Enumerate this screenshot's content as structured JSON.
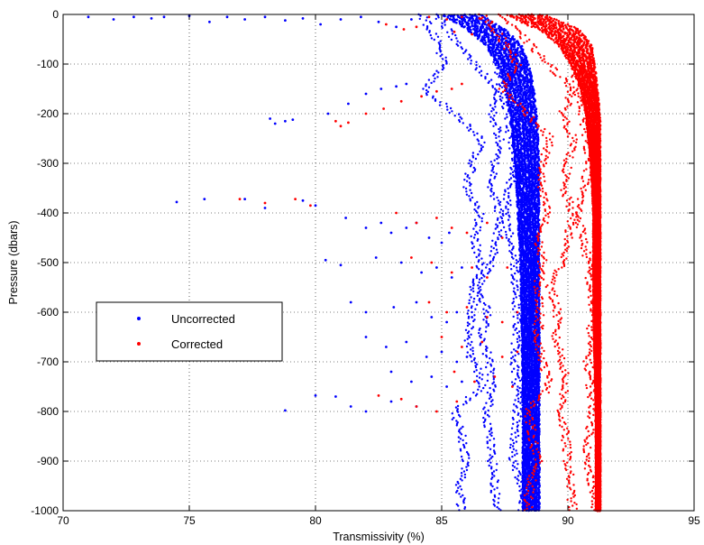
{
  "chart_data": {
    "type": "scatter",
    "xlabel": "Transmissivity (%)",
    "ylabel": "Pressure (dbars)",
    "xlim": [
      70,
      95
    ],
    "ylim": [
      -1000,
      0
    ],
    "xticks": [
      70,
      75,
      80,
      85,
      90,
      95
    ],
    "yticks": [
      0,
      -100,
      -200,
      -300,
      -400,
      -500,
      -600,
      -700,
      -800,
      -900,
      -1000
    ],
    "xtick_labels": [
      "70",
      "75",
      "80",
      "85",
      "90",
      "95"
    ],
    "ytick_labels": [
      "0",
      "-100",
      "-200",
      "-300",
      "-400",
      "-500",
      "-600",
      "-700",
      "-800",
      "-900",
      "-1000"
    ],
    "grid": true,
    "legend_position": "center-left",
    "series": [
      {
        "name": "Uncorrected",
        "color": "#0000ff",
        "marker": "dot",
        "dense_profile": [
          [
            0,
            85.0,
            86.6
          ],
          [
            -30,
            86.0,
            87.6
          ],
          [
            -60,
            86.7,
            88.2
          ],
          [
            -100,
            87.2,
            88.5
          ],
          [
            -150,
            87.5,
            88.7
          ],
          [
            -200,
            87.7,
            88.8
          ],
          [
            -300,
            87.9,
            88.9
          ],
          [
            -400,
            88.0,
            88.9
          ],
          [
            -500,
            88.1,
            88.9
          ],
          [
            -600,
            88.15,
            88.9
          ],
          [
            -800,
            88.2,
            88.9
          ],
          [
            -1000,
            88.2,
            88.9
          ]
        ],
        "profiles": [
          [
            [
              0,
              84.2
            ],
            [
              -50,
              84.8
            ],
            [
              -100,
              85.1
            ],
            [
              -150,
              84.3
            ],
            [
              -200,
              85.5
            ],
            [
              -250,
              86.6
            ],
            [
              -300,
              86.2
            ],
            [
              -350,
              86.0
            ],
            [
              -400,
              86.5
            ],
            [
              -450,
              86.3
            ],
            [
              -500,
              86.5
            ],
            [
              -550,
              86.3
            ],
            [
              -600,
              86.2
            ],
            [
              -650,
              86.0
            ],
            [
              -700,
              86.3
            ],
            [
              -750,
              86.6
            ],
            [
              -800,
              85.5
            ],
            [
              -850,
              85.8
            ],
            [
              -900,
              86.0
            ],
            [
              -950,
              85.7
            ],
            [
              -1000,
              85.8
            ]
          ],
          [
            [
              0,
              84.8
            ],
            [
              -50,
              85.5
            ],
            [
              -100,
              86.3
            ],
            [
              -150,
              87.2
            ],
            [
              -200,
              87.0
            ],
            [
              -250,
              87.3
            ],
            [
              -300,
              87.1
            ],
            [
              -350,
              87.0
            ],
            [
              -400,
              87.3
            ],
            [
              -450,
              87.2
            ],
            [
              -500,
              87.0
            ],
            [
              -550,
              86.5
            ],
            [
              -600,
              86.8
            ],
            [
              -650,
              86.6
            ],
            [
              -700,
              86.9
            ],
            [
              -750,
              87.0
            ],
            [
              -800,
              86.8
            ],
            [
              -850,
              86.9
            ],
            [
              -900,
              87.0
            ],
            [
              -950,
              87.1
            ],
            [
              -1000,
              87.2
            ]
          ],
          [
            [
              0,
              86.0
            ],
            [
              -50,
              87.0
            ],
            [
              -100,
              87.2
            ],
            [
              -150,
              87.4
            ],
            [
              -200,
              87.6
            ],
            [
              -300,
              87.9
            ],
            [
              -350,
              87.7
            ],
            [
              -400,
              87.5
            ],
            [
              -500,
              87.9
            ],
            [
              -600,
              88.0
            ],
            [
              -700,
              87.9
            ],
            [
              -800,
              88.0
            ],
            [
              -900,
              87.8
            ],
            [
              -950,
              88.2
            ],
            [
              -1000,
              88.2
            ]
          ]
        ],
        "scatter": [
          [
            71.0,
            -5
          ],
          [
            72.0,
            -10
          ],
          [
            72.8,
            -5
          ],
          [
            73.5,
            -8
          ],
          [
            74.0,
            -5
          ],
          [
            75.0,
            -3
          ],
          [
            75.8,
            -15
          ],
          [
            76.5,
            -5
          ],
          [
            77.2,
            -10
          ],
          [
            78.0,
            -5
          ],
          [
            78.8,
            -12
          ],
          [
            79.5,
            -8
          ],
          [
            80.2,
            -20
          ],
          [
            81.0,
            -10
          ],
          [
            81.8,
            -5
          ],
          [
            82.5,
            -15
          ],
          [
            83.2,
            -25
          ],
          [
            83.8,
            -10
          ],
          [
            74.5,
            -378
          ],
          [
            75.6,
            -372
          ],
          [
            77.2,
            -372
          ],
          [
            78.0,
            -390
          ],
          [
            79.5,
            -375
          ],
          [
            80.0,
            -385
          ],
          [
            78.2,
            -210
          ],
          [
            78.4,
            -220
          ],
          [
            78.8,
            -215
          ],
          [
            79.1,
            -212
          ],
          [
            80.5,
            -200
          ],
          [
            81.3,
            -180
          ],
          [
            82.0,
            -160
          ],
          [
            82.6,
            -150
          ],
          [
            83.2,
            -145
          ],
          [
            83.6,
            -140
          ],
          [
            81.2,
            -410
          ],
          [
            82.0,
            -430
          ],
          [
            82.6,
            -420
          ],
          [
            83.0,
            -440
          ],
          [
            83.6,
            -430
          ],
          [
            84.0,
            -420
          ],
          [
            84.5,
            -450
          ],
          [
            85.0,
            -460
          ],
          [
            85.3,
            -440
          ],
          [
            80.4,
            -495
          ],
          [
            81.0,
            -505
          ],
          [
            82.4,
            -490
          ],
          [
            83.4,
            -500
          ],
          [
            84.2,
            -520
          ],
          [
            84.8,
            -510
          ],
          [
            85.4,
            -530
          ],
          [
            85.8,
            -510
          ],
          [
            81.4,
            -580
          ],
          [
            82.0,
            -600
          ],
          [
            83.1,
            -590
          ],
          [
            84.0,
            -580
          ],
          [
            84.6,
            -610
          ],
          [
            85.2,
            -620
          ],
          [
            85.6,
            -600
          ],
          [
            86.2,
            -610
          ],
          [
            82.0,
            -650
          ],
          [
            82.8,
            -670
          ],
          [
            83.6,
            -660
          ],
          [
            84.4,
            -690
          ],
          [
            85.0,
            -680
          ],
          [
            85.6,
            -700
          ],
          [
            86.0,
            -690
          ],
          [
            83.0,
            -720
          ],
          [
            83.8,
            -740
          ],
          [
            84.6,
            -730
          ],
          [
            85.2,
            -750
          ],
          [
            85.8,
            -740
          ],
          [
            80.0,
            -768
          ],
          [
            80.8,
            -770
          ],
          [
            81.4,
            -790
          ],
          [
            82.0,
            -800
          ],
          [
            83.0,
            -780
          ],
          [
            84.0,
            -790
          ],
          [
            78.8,
            -798
          ]
        ]
      },
      {
        "name": "Corrected",
        "color": "#ff0000",
        "marker": "dot",
        "dense_profile": [
          [
            0,
            87.5,
            89.2
          ],
          [
            -30,
            88.8,
            90.5
          ],
          [
            -60,
            89.6,
            91.0
          ],
          [
            -100,
            90.1,
            91.1
          ],
          [
            -150,
            90.5,
            91.2
          ],
          [
            -200,
            90.7,
            91.3
          ],
          [
            -300,
            90.9,
            91.3
          ],
          [
            -400,
            91.0,
            91.3
          ],
          [
            -600,
            91.0,
            91.3
          ],
          [
            -800,
            91.1,
            91.3
          ],
          [
            -1000,
            91.1,
            91.3
          ]
        ],
        "profiles": [
          [
            [
              0,
              86.6
            ],
            [
              -50,
              87.4
            ],
            [
              -100,
              88.0
            ],
            [
              -150,
              87.4
            ],
            [
              -200,
              88.4
            ],
            [
              -250,
              89.3
            ],
            [
              -300,
              89.0
            ],
            [
              -350,
              88.9
            ],
            [
              -400,
              89.2
            ],
            [
              -450,
              88.8
            ],
            [
              -500,
              89.0
            ],
            [
              -550,
              88.8
            ],
            [
              -600,
              88.9
            ],
            [
              -650,
              88.8
            ],
            [
              -700,
              89.0
            ],
            [
              -750,
              89.3
            ],
            [
              -800,
              88.4
            ],
            [
              -850,
              88.6
            ],
            [
              -900,
              88.8
            ],
            [
              -950,
              88.5
            ],
            [
              -1000,
              88.4
            ]
          ],
          [
            [
              0,
              87.3
            ],
            [
              -50,
              88.3
            ],
            [
              -100,
              89.2
            ],
            [
              -150,
              90.2
            ],
            [
              -200,
              89.8
            ],
            [
              -250,
              90.2
            ],
            [
              -300,
              90.0
            ],
            [
              -350,
              89.8
            ],
            [
              -400,
              90.2
            ],
            [
              -450,
              90.0
            ],
            [
              -500,
              89.8
            ],
            [
              -550,
              89.3
            ],
            [
              -600,
              89.6
            ],
            [
              -650,
              89.5
            ],
            [
              -700,
              89.8
            ],
            [
              -750,
              89.9
            ],
            [
              -800,
              89.7
            ],
            [
              -850,
              89.9
            ],
            [
              -900,
              90.0
            ],
            [
              -950,
              90.1
            ],
            [
              -1000,
              90.2
            ]
          ],
          [
            [
              0,
              88.5
            ],
            [
              -50,
              89.8
            ],
            [
              -100,
              90.2
            ],
            [
              -150,
              90.4
            ],
            [
              -200,
              90.6
            ],
            [
              -300,
              90.9
            ],
            [
              -350,
              90.6
            ],
            [
              -400,
              90.4
            ],
            [
              -500,
              90.8
            ],
            [
              -600,
              91.0
            ],
            [
              -700,
              90.8
            ],
            [
              -800,
              91.0
            ],
            [
              -900,
              90.7
            ],
            [
              -950,
              91.0
            ],
            [
              -1000,
              91.1
            ]
          ]
        ],
        "scatter": [
          [
            84.5,
            -5
          ],
          [
            85.2,
            -10
          ],
          [
            85.8,
            -5
          ],
          [
            86.5,
            -8
          ],
          [
            87.0,
            -15
          ],
          [
            82.8,
            -20
          ],
          [
            83.5,
            -30
          ],
          [
            84.0,
            -25
          ],
          [
            85.5,
            -35
          ],
          [
            86.2,
            -40
          ],
          [
            77.0,
            -372
          ],
          [
            78.0,
            -380
          ],
          [
            79.2,
            -372
          ],
          [
            79.8,
            -385
          ],
          [
            80.8,
            -215
          ],
          [
            81.0,
            -225
          ],
          [
            81.3,
            -218
          ],
          [
            82.0,
            -200
          ],
          [
            82.7,
            -190
          ],
          [
            83.4,
            -175
          ],
          [
            84.2,
            -165
          ],
          [
            84.8,
            -155
          ],
          [
            85.4,
            -150
          ],
          [
            85.8,
            -140
          ],
          [
            83.2,
            -400
          ],
          [
            84.0,
            -420
          ],
          [
            84.8,
            -410
          ],
          [
            85.4,
            -430
          ],
          [
            86.0,
            -440
          ],
          [
            86.8,
            -420
          ],
          [
            87.4,
            -450
          ],
          [
            83.8,
            -490
          ],
          [
            84.6,
            -500
          ],
          [
            85.4,
            -520
          ],
          [
            86.2,
            -510
          ],
          [
            86.8,
            -530
          ],
          [
            87.6,
            -510
          ],
          [
            84.5,
            -580
          ],
          [
            85.2,
            -600
          ],
          [
            86.0,
            -590
          ],
          [
            86.8,
            -610
          ],
          [
            87.4,
            -620
          ],
          [
            88.0,
            -600
          ],
          [
            85.0,
            -650
          ],
          [
            85.8,
            -670
          ],
          [
            86.6,
            -660
          ],
          [
            87.4,
            -690
          ],
          [
            88.0,
            -680
          ],
          [
            85.5,
            -720
          ],
          [
            86.3,
            -740
          ],
          [
            87.1,
            -730
          ],
          [
            87.8,
            -750
          ],
          [
            82.5,
            -768
          ],
          [
            83.4,
            -775
          ],
          [
            84.0,
            -790
          ],
          [
            84.8,
            -800
          ],
          [
            85.6,
            -780
          ]
        ]
      }
    ]
  },
  "legend": {
    "items": [
      {
        "label": "Uncorrected",
        "color": "#0000ff"
      },
      {
        "label": "Corrected",
        "color": "#ff0000"
      }
    ]
  }
}
